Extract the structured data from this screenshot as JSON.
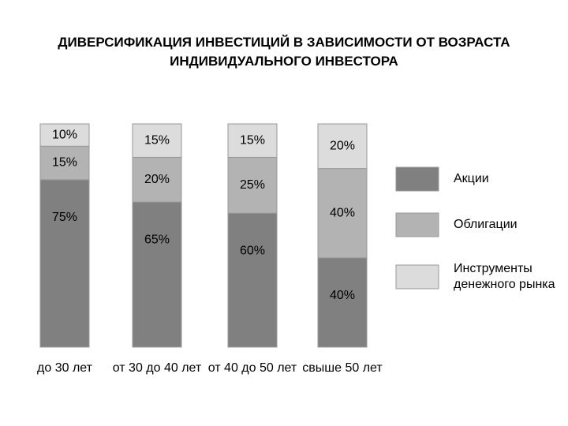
{
  "chart_data": {
    "type": "stacked_bar",
    "title": "ДИВЕРСИФИКАЦИЯ ИНВЕСТИЦИЙ В ЗАВИСИМОСТИ ОТ ВОЗРАСТА ИНДИВИДУАЛЬНОГО ИНВЕСТОРА",
    "categories": [
      "до 30 лет",
      "от 30 до 40 лет",
      "от 40 до 50 лет",
      "свыше 50 лет"
    ],
    "series": [
      {
        "name": "Акции",
        "color": "#808080",
        "values": [
          75,
          65,
          60,
          40
        ],
        "value_labels": [
          "75%",
          "65%",
          "60%",
          "40%"
        ]
      },
      {
        "name": "Облигации",
        "color": "#b3b3b3",
        "values": [
          15,
          20,
          25,
          40
        ],
        "value_labels": [
          "15%",
          "20%",
          "25%",
          "40%"
        ]
      },
      {
        "name": "Инструменты денежного рынка",
        "color": "#dcdcdc",
        "values": [
          10,
          15,
          15,
          20
        ],
        "value_labels": [
          "10%",
          "15%",
          "15%",
          "20%"
        ]
      }
    ]
  }
}
